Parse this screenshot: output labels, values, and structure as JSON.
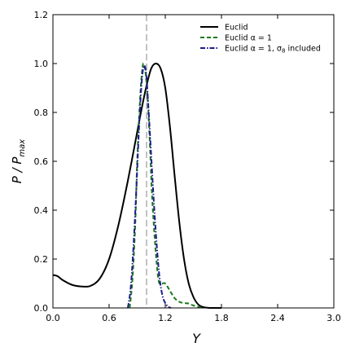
{
  "chart_data": {
    "type": "line",
    "xlabel": "Y",
    "ylabel": "P / P",
    "ylabel_sub": "max",
    "xlim": [
      0.0,
      3.0
    ],
    "ylim": [
      0.0,
      1.2
    ],
    "x_ticks": [
      0.0,
      0.6,
      1.2,
      1.8,
      2.4,
      3.0
    ],
    "x_tick_labels": [
      "0.0",
      "0.6",
      "1.2",
      "1.8",
      "2.4",
      "3.0"
    ],
    "y_ticks": [
      0.0,
      0.2,
      0.4,
      0.6,
      0.8,
      1.0,
      1.2
    ],
    "y_tick_labels": [
      "0.0",
      "0.2",
      "0.4",
      "0.6",
      "0.8",
      "1.0",
      "1.2"
    ],
    "grid": false,
    "legend_position": "top-right",
    "reference_line": {
      "x": 1.0,
      "color": "#999999",
      "style": "dashed"
    },
    "series": [
      {
        "name": "Euclid",
        "color": "#000000",
        "style": "solid",
        "x": [
          0.0,
          0.05,
          0.1,
          0.2,
          0.3,
          0.4,
          0.5,
          0.6,
          0.7,
          0.8,
          0.9,
          0.95,
          1.0,
          1.05,
          1.1,
          1.15,
          1.2,
          1.25,
          1.3,
          1.35,
          1.4,
          1.45,
          1.5,
          1.55,
          1.6,
          1.65,
          1.7,
          1.8
        ],
        "y": [
          0.135,
          0.13,
          0.115,
          0.095,
          0.088,
          0.09,
          0.12,
          0.2,
          0.34,
          0.52,
          0.72,
          0.82,
          0.91,
          0.98,
          1.0,
          0.98,
          0.9,
          0.74,
          0.54,
          0.35,
          0.2,
          0.1,
          0.045,
          0.015,
          0.004,
          0.001,
          0.0,
          0.0
        ]
      },
      {
        "name": "Euclid $\\alpha$ = 1",
        "legend_label": "Euclid α = 1",
        "color": "#1a7a1a",
        "style": "dashed",
        "x": [
          0.82,
          0.85,
          0.88,
          0.9,
          0.93,
          0.95,
          0.97,
          1.0,
          1.03,
          1.06,
          1.1,
          1.13,
          1.16,
          1.2,
          1.25,
          1.3,
          1.35,
          1.4,
          1.45,
          1.5,
          1.6
        ],
        "y": [
          0.0,
          0.12,
          0.35,
          0.6,
          0.85,
          0.96,
          1.0,
          0.92,
          0.72,
          0.45,
          0.22,
          0.11,
          0.1,
          0.1,
          0.07,
          0.04,
          0.025,
          0.02,
          0.018,
          0.01,
          0.0
        ]
      },
      {
        "name": "Euclid $\\alpha$ = 1, $\\sigma_8$ included",
        "legend_label": "Euclid α = 1, σ",
        "legend_sub": "8",
        "legend_tail": " included",
        "color": "#1c1c8c",
        "style": "dashdot",
        "x": [
          0.8,
          0.83,
          0.86,
          0.89,
          0.92,
          0.94,
          0.96,
          0.98,
          1.0,
          1.02,
          1.05,
          1.08,
          1.11,
          1.14,
          1.17,
          1.2,
          1.23,
          1.26
        ],
        "y": [
          0.0,
          0.08,
          0.25,
          0.48,
          0.74,
          0.88,
          0.97,
          0.99,
          0.94,
          0.82,
          0.62,
          0.42,
          0.25,
          0.12,
          0.05,
          0.02,
          0.005,
          0.0
        ]
      }
    ]
  }
}
